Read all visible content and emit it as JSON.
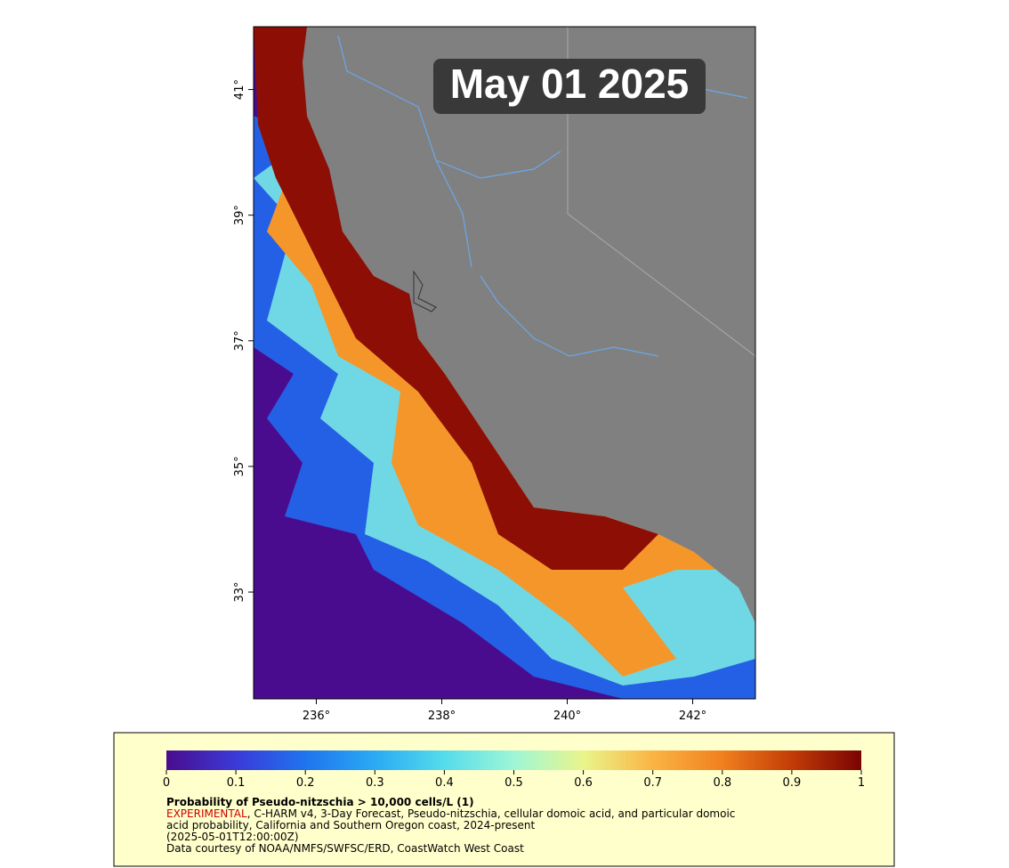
{
  "map": {
    "date_label": "May 01 2025",
    "lon_range": [
      235,
      243
    ],
    "lat_range": [
      31.3,
      42.0
    ],
    "lon_ticks": [
      {
        "value": 236,
        "label": "236°"
      },
      {
        "value": 238,
        "label": "238°"
      },
      {
        "value": 240,
        "label": "240°"
      },
      {
        "value": 242,
        "label": "242°"
      }
    ],
    "lat_ticks": [
      {
        "value": 33,
        "label": "33°"
      },
      {
        "value": 35,
        "label": "35°"
      },
      {
        "value": 37,
        "label": "37°"
      },
      {
        "value": 39,
        "label": "39°"
      },
      {
        "value": 41,
        "label": "41°"
      }
    ],
    "colorbar": {
      "range": [
        0,
        1
      ],
      "ticks": [
        0,
        0.1,
        0.2,
        0.3,
        0.4,
        0.5,
        0.6,
        0.7,
        0.8,
        0.9,
        1
      ]
    },
    "legend": {
      "title": "Probability of Pseudo-nitzschia > 10,000 cells/L (1)",
      "experimental": "EXPERIMENTAL",
      "description_line1": ", C-HARM v4, 3-Day Forecast, Pseudo-nitzschia, cellular domoic acid, and particular domoic",
      "description_line2": "acid probability, California and Southern Oregon coast, 2024-present",
      "time": "(2025-05-01T12:00:00Z)",
      "credit": "Data courtesy of NOAA/NMFS/SWFSC/ERD, CoastWatch West Coast"
    }
  }
}
